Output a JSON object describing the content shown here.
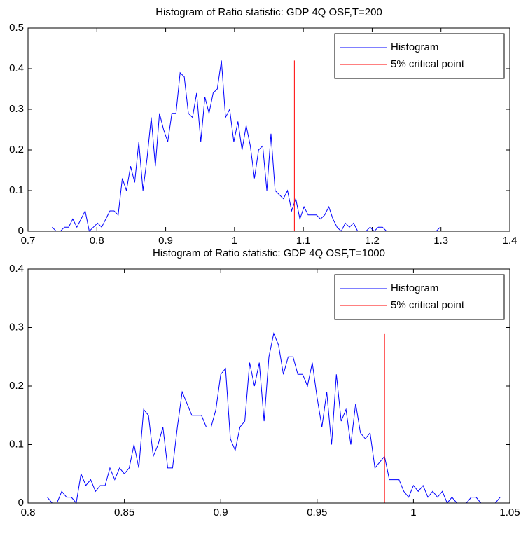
{
  "chart_data": [
    {
      "type": "line",
      "title": "Histogram of Ratio statistic: GDP 4Q OSF,T=200",
      "series": [
        {
          "name": "Histogram",
          "color": "#0000ff",
          "x": [
            0.735,
            0.741,
            0.747,
            0.753,
            0.759,
            0.765,
            0.771,
            0.777,
            0.783,
            0.789,
            0.795,
            0.801,
            0.807,
            0.813,
            0.819,
            0.825,
            0.831,
            0.837,
            0.843,
            0.849,
            0.855,
            0.861,
            0.867,
            0.873,
            0.879,
            0.885,
            0.891,
            0.897,
            0.903,
            0.909,
            0.915,
            0.921,
            0.927,
            0.933,
            0.939,
            0.945,
            0.951,
            0.957,
            0.963,
            0.969,
            0.975,
            0.981,
            0.987,
            0.993,
            0.999,
            1.005,
            1.011,
            1.017,
            1.023,
            1.029,
            1.035,
            1.041,
            1.047,
            1.053,
            1.059,
            1.065,
            1.071,
            1.077,
            1.083,
            1.089,
            1.095,
            1.101,
            1.107,
            1.113,
            1.119,
            1.125,
            1.131,
            1.137,
            1.143,
            1.149,
            1.155,
            1.161,
            1.167,
            1.173,
            1.179,
            1.185,
            1.191,
            1.197,
            1.203,
            1.209,
            1.215,
            1.221,
            1.227,
            1.233,
            1.239,
            1.245,
            1.251,
            1.257,
            1.263,
            1.269,
            1.275,
            1.281,
            1.287,
            1.293,
            1.299
          ],
          "values": [
            0.01,
            0,
            0,
            0.01,
            0.01,
            0.03,
            0.01,
            0.03,
            0.05,
            0,
            0.01,
            0.02,
            0.01,
            0.03,
            0.05,
            0.05,
            0.04,
            0.13,
            0.1,
            0.16,
            0.12,
            0.22,
            0.1,
            0.18,
            0.28,
            0.16,
            0.29,
            0.25,
            0.22,
            0.29,
            0.29,
            0.39,
            0.38,
            0.29,
            0.28,
            0.34,
            0.22,
            0.33,
            0.29,
            0.34,
            0.35,
            0.42,
            0.28,
            0.3,
            0.22,
            0.27,
            0.2,
            0.26,
            0.21,
            0.13,
            0.2,
            0.21,
            0.1,
            0.24,
            0.1,
            0.09,
            0.08,
            0.1,
            0.05,
            0.08,
            0.03,
            0.06,
            0.04,
            0.04,
            0.04,
            0.03,
            0.04,
            0.06,
            0.03,
            0.01,
            0,
            0.02,
            0.01,
            0.02,
            0,
            0,
            0,
            0.01,
            0,
            0.01,
            0.01,
            0,
            0,
            0,
            0,
            0,
            0,
            0,
            0,
            0,
            0,
            0,
            0,
            0,
            0.01
          ]
        },
        {
          "name": "5% critical point",
          "color": "#ff0000",
          "x": [
            1.087,
            1.087
          ],
          "values": [
            0,
            0.42
          ]
        }
      ],
      "xlim": [
        0.7,
        1.4
      ],
      "ylim": [
        0,
        0.5
      ],
      "xticks": [
        0.7,
        0.8,
        0.9,
        1,
        1.1,
        1.2,
        1.3,
        1.4
      ],
      "yticks": [
        0,
        0.1,
        0.2,
        0.3,
        0.4,
        0.5
      ],
      "legend": "upper right"
    },
    {
      "type": "line",
      "title": "Histogram of Ratio statistic: GDP 4Q OSF,T=1000",
      "series": [
        {
          "name": "Histogram",
          "color": "#0000ff",
          "x": [
            0.81,
            0.8125,
            0.815,
            0.8175,
            0.82,
            0.8225,
            0.825,
            0.8275,
            0.83,
            0.8325,
            0.835,
            0.8375,
            0.84,
            0.8425,
            0.845,
            0.8475,
            0.85,
            0.8525,
            0.855,
            0.8575,
            0.86,
            0.8625,
            0.865,
            0.8675,
            0.87,
            0.8725,
            0.875,
            0.8775,
            0.88,
            0.8825,
            0.885,
            0.8875,
            0.89,
            0.8925,
            0.895,
            0.8975,
            0.9,
            0.9025,
            0.905,
            0.9075,
            0.91,
            0.9125,
            0.915,
            0.9175,
            0.92,
            0.9225,
            0.925,
            0.9275,
            0.93,
            0.9325,
            0.935,
            0.9375,
            0.94,
            0.9425,
            0.945,
            0.9475,
            0.95,
            0.9525,
            0.955,
            0.9575,
            0.96,
            0.9625,
            0.965,
            0.9675,
            0.97,
            0.9725,
            0.975,
            0.9775,
            0.98,
            0.9825,
            0.985,
            0.9875,
            0.99,
            0.9925,
            0.995,
            0.9975,
            1.0,
            1.0025,
            1.005,
            1.0075,
            1.01,
            1.0125,
            1.015,
            1.0175,
            1.02,
            1.0225,
            1.025,
            1.0275,
            1.03,
            1.0325,
            1.035,
            1.0375,
            1.04,
            1.0425,
            1.045
          ],
          "values": [
            0.01,
            0,
            0,
            0.02,
            0.01,
            0.01,
            0,
            0.05,
            0.03,
            0.04,
            0.02,
            0.03,
            0.03,
            0.06,
            0.04,
            0.06,
            0.05,
            0.06,
            0.1,
            0.06,
            0.16,
            0.15,
            0.08,
            0.1,
            0.13,
            0.06,
            0.06,
            0.13,
            0.19,
            0.17,
            0.15,
            0.15,
            0.15,
            0.13,
            0.13,
            0.16,
            0.22,
            0.23,
            0.11,
            0.09,
            0.13,
            0.14,
            0.24,
            0.2,
            0.24,
            0.14,
            0.25,
            0.29,
            0.27,
            0.22,
            0.25,
            0.25,
            0.22,
            0.22,
            0.2,
            0.24,
            0.18,
            0.13,
            0.19,
            0.1,
            0.22,
            0.14,
            0.16,
            0.1,
            0.17,
            0.12,
            0.11,
            0.12,
            0.06,
            0.07,
            0.08,
            0.04,
            0.04,
            0.04,
            0.02,
            0.01,
            0.03,
            0.02,
            0.03,
            0.01,
            0.02,
            0.01,
            0.02,
            0,
            0.01,
            0,
            0,
            0,
            0.01,
            0.01,
            0,
            0,
            0,
            0,
            0.01
          ]
        },
        {
          "name": "5% critical point",
          "color": "#ff0000",
          "x": [
            0.985,
            0.985
          ],
          "values": [
            0,
            0.29
          ]
        }
      ],
      "xlim": [
        0.8,
        1.05
      ],
      "ylim": [
        0,
        0.4
      ],
      "xticks": [
        0.8,
        0.85,
        0.9,
        0.95,
        1,
        1.05
      ],
      "yticks": [
        0,
        0.1,
        0.2,
        0.3,
        0.4
      ],
      "legend": "upper right"
    }
  ]
}
